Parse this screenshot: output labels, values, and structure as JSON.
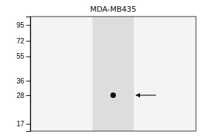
{
  "chart_data": {
    "type": "scatter",
    "title": "MDA-MB435",
    "values": [
      28
    ],
    "color": "#111111",
    "log": "y",
    "ylim": [
      15,
      110
    ],
    "yticks": [
      95,
      72,
      55,
      36,
      28,
      17
    ],
    "tick_labels": "y",
    "grid": false
  }
}
